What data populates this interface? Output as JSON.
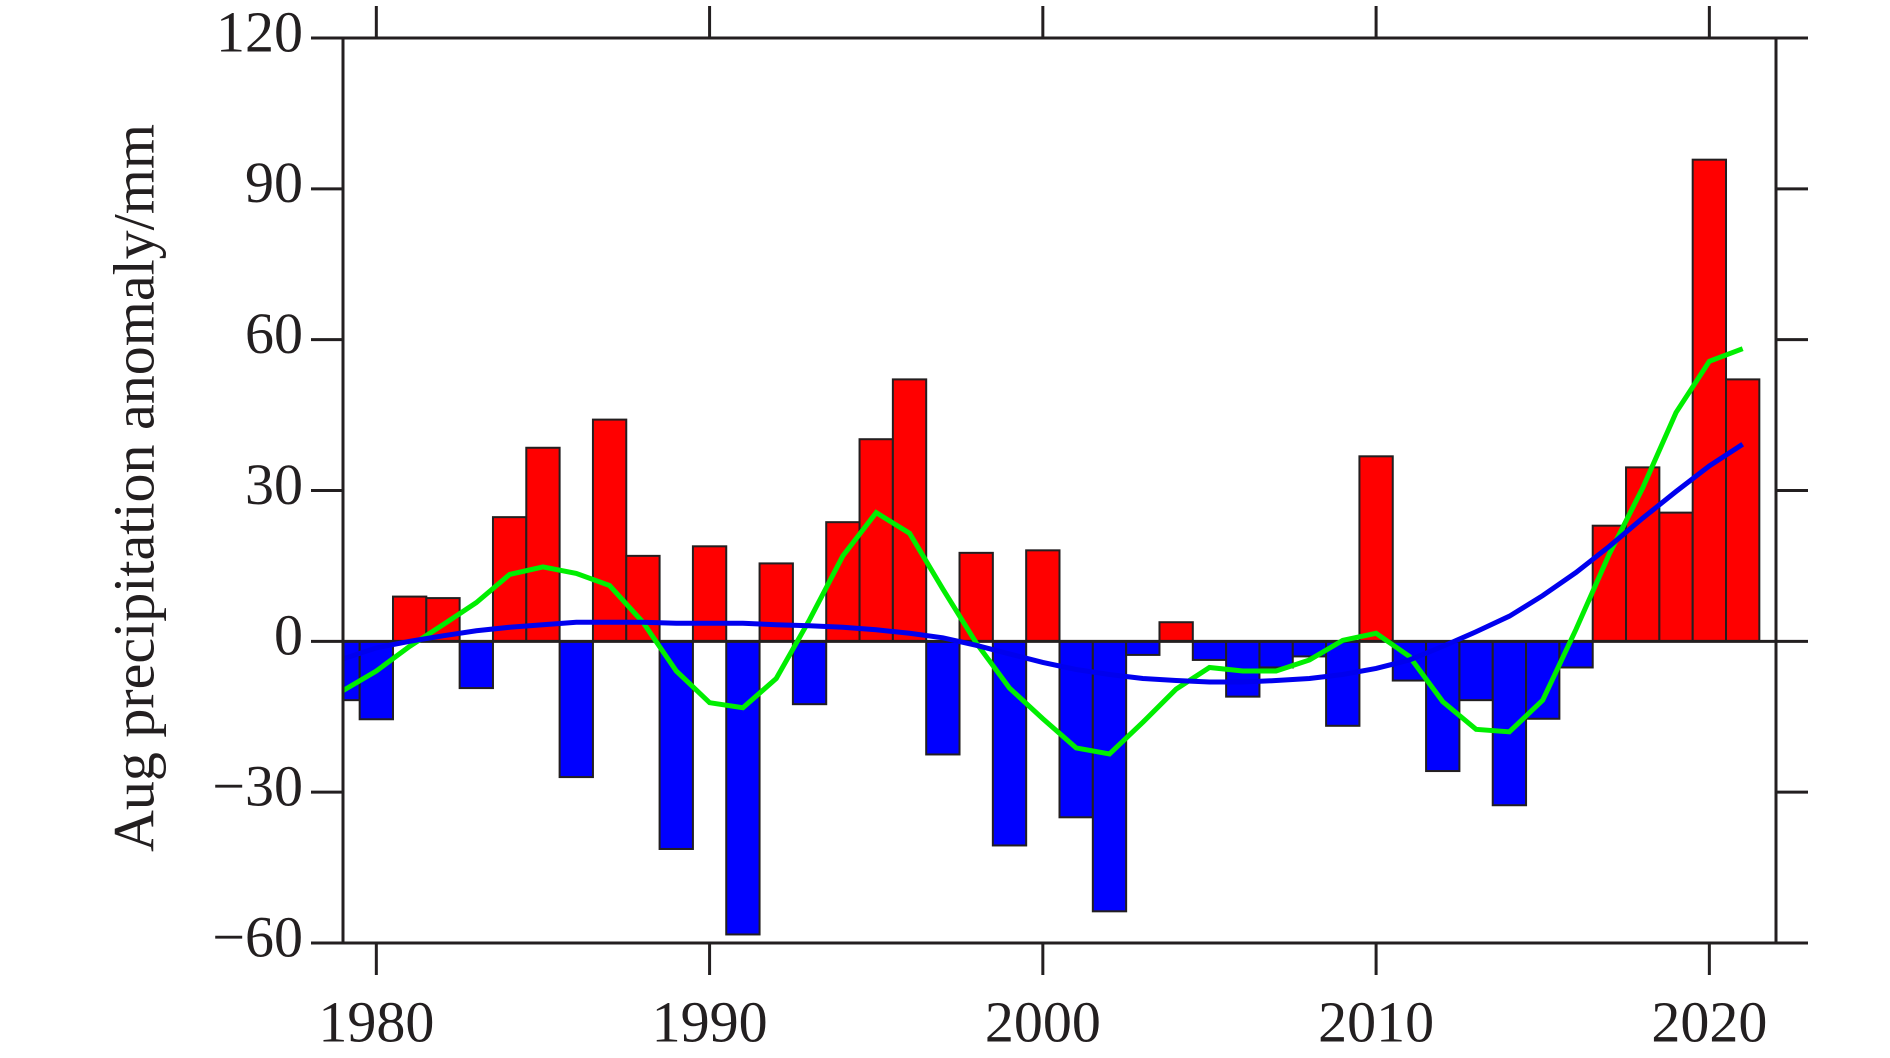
{
  "chart_data": {
    "type": "bar",
    "ylabel": "Aug precipitation anomaly/mm",
    "x": [
      1979,
      1980,
      1981,
      1982,
      1983,
      1984,
      1985,
      1986,
      1987,
      1988,
      1989,
      1990,
      1991,
      1992,
      1993,
      1994,
      1995,
      1996,
      1997,
      1998,
      1999,
      2000,
      2001,
      2002,
      2003,
      2004,
      2005,
      2006,
      2007,
      2008,
      2009,
      2010,
      2011,
      2012,
      2013,
      2014,
      2015,
      2016,
      2017,
      2018,
      2019,
      2020,
      2021
    ],
    "values": [
      -11.7,
      -15.5,
      8.9,
      8.6,
      -9.3,
      24.7,
      38.5,
      -27,
      44.1,
      17,
      -41.3,
      18.9,
      -58.3,
      15.5,
      -12.5,
      23.7,
      40.2,
      52.1,
      -22.5,
      17.6,
      -40.6,
      18.1,
      -35,
      -53.7,
      -2.7,
      3.8,
      -3.7,
      -11,
      -5.2,
      -3,
      -16.8,
      36.8,
      -7.8,
      -25.8,
      -11.7,
      -32.6,
      -15.4,
      -5.2,
      23,
      34.6,
      25.6,
      95.8,
      52.1
    ],
    "positive_color": "#ff0000",
    "negative_color": "#0000ff",
    "lines": [
      {
        "color": "#00ee00",
        "values": [
          -9.8,
          -5.9,
          -1,
          3.3,
          7.7,
          13.3,
          14.8,
          13.5,
          11.1,
          3.8,
          -5.9,
          -12.2,
          -13.2,
          -7.4,
          4.3,
          17,
          25.6,
          21.5,
          10.4,
          -0.3,
          -9.3,
          -15.4,
          -21.2,
          -22.4,
          -16.1,
          -9.5,
          -5.2,
          -5.9,
          -5.9,
          -3.7,
          0.2,
          1.6,
          -3,
          -12,
          -17.5,
          -18,
          -11.7,
          2.4,
          17.4,
          30.5,
          45.5,
          55.7,
          58.2
        ]
      },
      {
        "color": "#0000ee",
        "values": [
          -3.5,
          -1.3,
          0,
          1.1,
          2.1,
          2.8,
          3.3,
          3.8,
          3.8,
          3.8,
          3.6,
          3.6,
          3.6,
          3.3,
          3.1,
          2.8,
          2.3,
          1.6,
          0.7,
          -0.8,
          -2.5,
          -4.2,
          -5.6,
          -6.6,
          -7.4,
          -7.8,
          -8.1,
          -8.1,
          -7.8,
          -7.4,
          -6.6,
          -5.4,
          -3.7,
          -1,
          1.9,
          5,
          9.1,
          13.7,
          18.9,
          24.5,
          29.8,
          34.9,
          39.2
        ]
      }
    ],
    "xlim": [
      1979,
      2022
    ],
    "ylim": [
      -60,
      120
    ],
    "xticks": [
      1980,
      1990,
      2000,
      2010,
      2020
    ],
    "yticks": [
      {
        "value": -60,
        "label": "−60"
      },
      {
        "value": -30,
        "label": "−30"
      },
      0,
      30,
      60,
      90,
      120
    ]
  }
}
